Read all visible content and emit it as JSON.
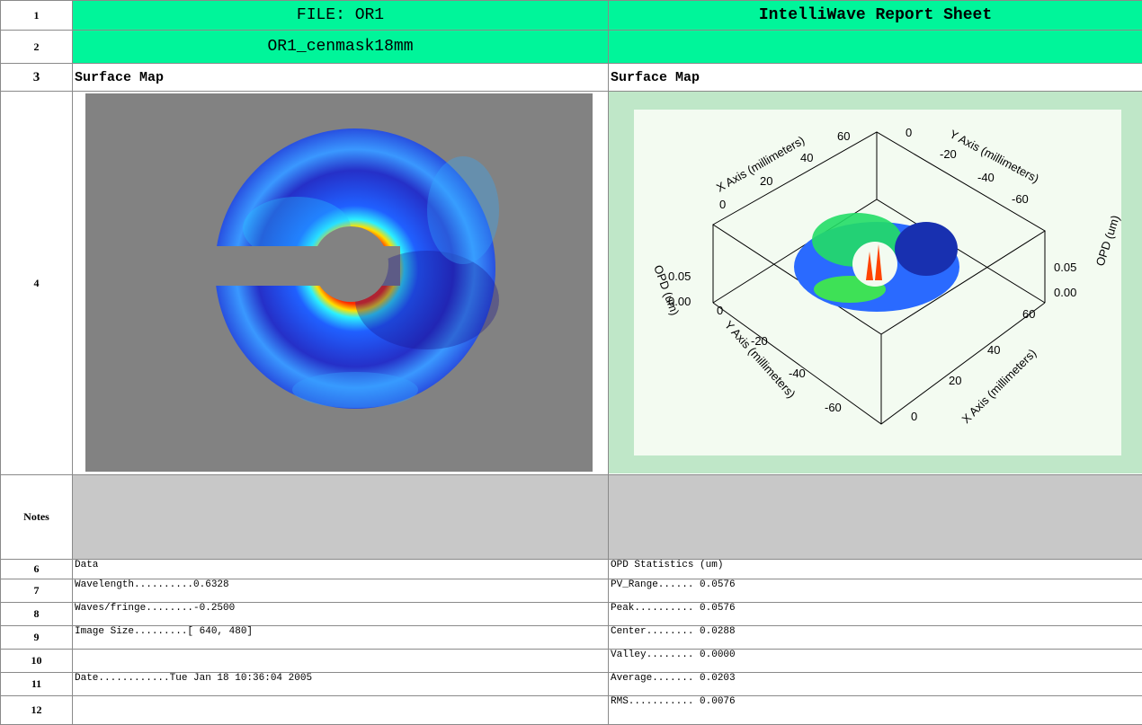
{
  "rows": {
    "r1": {
      "num": "1",
      "left": "FILE: OR1",
      "right": "IntelliWave Report Sheet"
    },
    "r2": {
      "num": "2",
      "left": "OR1_cenmask18mm",
      "right": ""
    },
    "r3": {
      "num": "3",
      "left": "Surface Map",
      "right": "Surface Map"
    },
    "r4": {
      "num": "4"
    },
    "notes": {
      "num": "Notes"
    },
    "r6": {
      "num": "6",
      "left": "Data",
      "right": "OPD Statistics (um)"
    },
    "r7": {
      "num": "7",
      "left": "Wavelength..........0.6328",
      "right": "PV_Range...... 0.0576"
    },
    "r8": {
      "num": "8",
      "left": "Waves/fringe........-0.2500",
      "right": "Peak.......... 0.0576"
    },
    "r9": {
      "num": "9",
      "left": "Image Size.........[ 640, 480]",
      "right": "Center........ 0.0288"
    },
    "r10": {
      "num": "10",
      "left": "",
      "right": "Valley........ 0.0000"
    },
    "r11": {
      "num": "11",
      "left": "Date............Tue Jan 18 10:36:04 2005",
      "right": "Average....... 0.0203"
    },
    "r12": {
      "num": "12",
      "left": "",
      "right": "RMS........... 0.0076"
    }
  },
  "plot3d": {
    "x_axis_label_top": "X Axis (millimeters)",
    "y_axis_label_top": "Y Axis (millimeters)",
    "y_axis_label_bottom": "Y Axis (millimeters)",
    "x_axis_label_bottom": "X Axis (millimeters)",
    "opd_label": "OPD (um)",
    "ticks_top_x": [
      "0",
      "20",
      "40",
      "60"
    ],
    "ticks_top_y": [
      "0",
      "-20",
      "-40",
      "-60"
    ],
    "ticks_bottom_y": [
      "0",
      "-20",
      "-40",
      "-60"
    ],
    "ticks_bottom_x": [
      "0",
      "20",
      "40",
      "60"
    ],
    "ticks_z": [
      "0.05",
      "0.00"
    ]
  },
  "colors": {
    "header_green": "#00f59a",
    "notes_gray": "#c8c8c8",
    "panel_gray": "#828282",
    "plot_frame": "#bfe7c8"
  }
}
